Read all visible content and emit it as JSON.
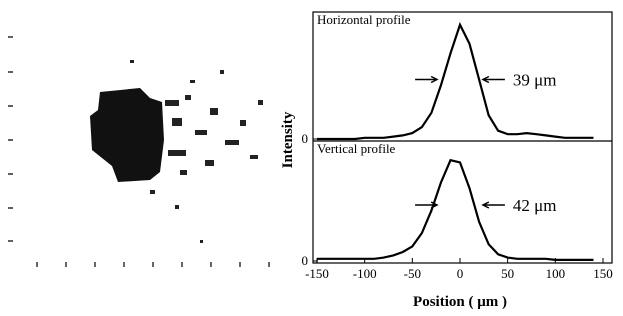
{
  "y_label": "Intensity",
  "x_label": "Position ( μm )",
  "chart_data": [
    {
      "type": "line",
      "title": "Horizontal profile",
      "annotation": "39 μm",
      "color": "#000000",
      "x": [
        -150,
        -140,
        -130,
        -120,
        -110,
        -100,
        -90,
        -80,
        -70,
        -60,
        -50,
        -40,
        -30,
        -20,
        -10,
        0,
        10,
        20,
        30,
        40,
        50,
        60,
        70,
        80,
        90,
        100,
        110,
        120,
        130,
        140
      ],
      "values": [
        0,
        0,
        0,
        0,
        0,
        0.01,
        0.01,
        0.01,
        0.02,
        0.03,
        0.05,
        0.1,
        0.22,
        0.45,
        0.72,
        0.96,
        0.8,
        0.5,
        0.2,
        0.07,
        0.04,
        0.04,
        0.05,
        0.04,
        0.03,
        0.02,
        0.01,
        0.01,
        0.01,
        0.01
      ],
      "xlim": [
        -150,
        150
      ],
      "ylim": [
        0,
        1
      ],
      "yticks": [
        0
      ]
    },
    {
      "type": "line",
      "title": "Vertical profile",
      "annotation": "42 μm",
      "color": "#000000",
      "x": [
        -150,
        -140,
        -130,
        -120,
        -110,
        -100,
        -90,
        -80,
        -70,
        -60,
        -50,
        -40,
        -30,
        -20,
        -10,
        0,
        10,
        20,
        30,
        40,
        50,
        60,
        70,
        80,
        90,
        100,
        110,
        120,
        130,
        140
      ],
      "values": [
        0.02,
        0.02,
        0.02,
        0.02,
        0.02,
        0.02,
        0.02,
        0.03,
        0.05,
        0.08,
        0.13,
        0.25,
        0.45,
        0.7,
        0.9,
        0.88,
        0.65,
        0.35,
        0.15,
        0.06,
        0.03,
        0.02,
        0.02,
        0.02,
        0.02,
        0.01,
        0.01,
        0.01,
        0.01,
        0.01
      ],
      "xlim": [
        -150,
        150
      ],
      "ylim": [
        0,
        1
      ],
      "yticks": [
        0
      ],
      "xticks": [
        -150,
        -100,
        -50,
        0,
        50,
        100,
        150
      ]
    }
  ]
}
